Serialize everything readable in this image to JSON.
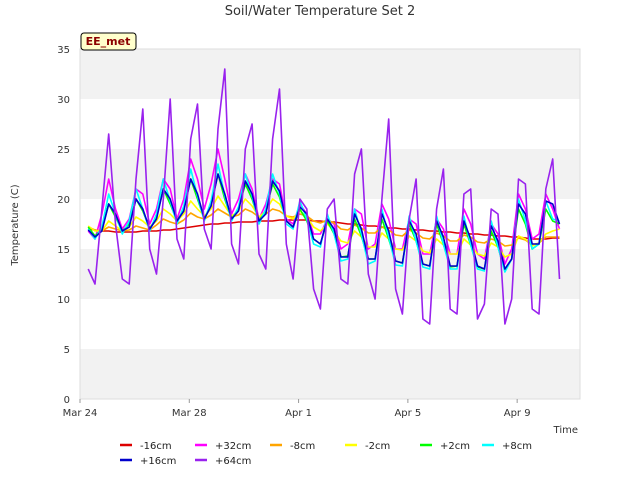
{
  "chart_data": {
    "type": "line",
    "title": "Soil/Water Temperature Set 2",
    "xlabel": "Time",
    "ylabel": "Temperature (C)",
    "badge": "EE_met",
    "ylim": [
      0,
      35
    ],
    "yticks": [
      0,
      5,
      10,
      15,
      20,
      25,
      30,
      35
    ],
    "xlim": [
      0,
      18.3
    ],
    "xticks": [
      {
        "value": 0,
        "label": "Mar 24"
      },
      {
        "value": 4,
        "label": "Mar 28"
      },
      {
        "value": 8,
        "label": "Apr 1"
      },
      {
        "value": 12,
        "label": "Apr 5"
      },
      {
        "value": 16,
        "label": "Apr 9"
      }
    ],
    "x_units": "days since Mar 24",
    "grid": "horizontal alternating bands",
    "legend_position": "bottom",
    "x": [
      0.3,
      0.55,
      0.8,
      1.05,
      1.3,
      1.55,
      1.8,
      2.05,
      2.3,
      2.55,
      2.8,
      3.05,
      3.3,
      3.55,
      3.8,
      4.05,
      4.3,
      4.55,
      4.8,
      5.05,
      5.3,
      5.55,
      5.8,
      6.05,
      6.3,
      6.55,
      6.8,
      7.05,
      7.3,
      7.55,
      7.8,
      8.05,
      8.3,
      8.55,
      8.8,
      9.05,
      9.3,
      9.55,
      9.8,
      10.05,
      10.3,
      10.55,
      10.8,
      11.05,
      11.3,
      11.55,
      11.8,
      12.05,
      12.3,
      12.55,
      12.8,
      13.05,
      13.3,
      13.55,
      13.8,
      14.05,
      14.3,
      14.55,
      14.8,
      15.05,
      15.3,
      15.55,
      15.8,
      16.05,
      16.3,
      16.55,
      16.8,
      17.05,
      17.3,
      17.55
    ],
    "series": [
      {
        "name": "-16cm",
        "color": "#dd0000",
        "values": [
          17.0,
          16.9,
          16.8,
          16.8,
          16.7,
          16.7,
          16.7,
          16.7,
          16.8,
          16.8,
          16.8,
          16.9,
          16.9,
          17.0,
          17.1,
          17.2,
          17.3,
          17.4,
          17.5,
          17.5,
          17.6,
          17.6,
          17.7,
          17.7,
          17.7,
          17.8,
          17.8,
          17.8,
          17.9,
          17.9,
          17.9,
          17.9,
          17.9,
          17.8,
          17.8,
          17.7,
          17.7,
          17.6,
          17.5,
          17.5,
          17.4,
          17.3,
          17.3,
          17.2,
          17.1,
          17.1,
          17.0,
          17.0,
          16.9,
          16.9,
          16.8,
          16.8,
          16.7,
          16.7,
          16.6,
          16.6,
          16.5,
          16.5,
          16.4,
          16.4,
          16.3,
          16.3,
          16.2,
          16.2,
          16.1,
          16.0,
          16.0,
          16.0,
          16.1,
          16.1
        ]
      },
      {
        "name": "+32cm",
        "color": "#ff00ff",
        "values": [
          16.8,
          16.0,
          18.5,
          22.0,
          19.0,
          17.0,
          18.0,
          21.0,
          20.5,
          17.5,
          19.0,
          22.0,
          21.0,
          18.0,
          20.0,
          24.0,
          22.0,
          19.0,
          21.5,
          25.0,
          22.0,
          18.5,
          20.0,
          22.5,
          21.0,
          18.0,
          19.5,
          22.0,
          21.5,
          18.0,
          17.5,
          19.5,
          18.5,
          16.5,
          16.5,
          18.0,
          17.5,
          15.0,
          15.5,
          19.0,
          18.5,
          15.0,
          15.5,
          19.5,
          18.0,
          15.0,
          15.0,
          18.0,
          17.5,
          14.5,
          14.5,
          18.0,
          17.0,
          14.5,
          14.5,
          19.0,
          17.5,
          14.5,
          14.0,
          17.5,
          16.5,
          13.5,
          15.0,
          20.5,
          19.0,
          16.0,
          16.5,
          20.5,
          19.0,
          17.0
        ]
      },
      {
        "name": "-8cm",
        "color": "#ffa500",
        "values": [
          17.2,
          16.9,
          16.8,
          17.2,
          17.0,
          16.8,
          16.9,
          17.3,
          17.1,
          16.9,
          17.4,
          18.0,
          17.7,
          17.5,
          17.9,
          18.6,
          18.2,
          18.0,
          18.4,
          19.0,
          18.6,
          18.2,
          18.4,
          19.0,
          18.7,
          18.2,
          18.5,
          19.0,
          18.8,
          18.3,
          18.2,
          18.5,
          18.3,
          17.8,
          17.6,
          17.9,
          17.6,
          17.0,
          16.9,
          17.4,
          17.1,
          16.6,
          16.6,
          17.2,
          16.9,
          16.4,
          16.3,
          16.9,
          16.6,
          16.1,
          16.0,
          16.6,
          16.3,
          15.8,
          15.8,
          16.4,
          16.2,
          15.7,
          15.6,
          16.0,
          15.8,
          15.3,
          15.4,
          16.1,
          15.9,
          15.4,
          15.6,
          16.2,
          16.2,
          16.2
        ]
      },
      {
        "name": "-2cm",
        "color": "#ffff00",
        "values": [
          17.3,
          16.8,
          16.8,
          17.8,
          17.3,
          16.8,
          17.2,
          18.2,
          17.8,
          17.2,
          17.8,
          19.0,
          18.5,
          17.8,
          18.5,
          19.8,
          19.0,
          18.3,
          19.0,
          20.3,
          19.3,
          18.3,
          18.8,
          20.0,
          19.3,
          18.2,
          18.8,
          20.0,
          19.5,
          18.3,
          18.0,
          18.8,
          18.2,
          17.2,
          16.8,
          17.5,
          16.8,
          15.8,
          15.6,
          16.8,
          16.2,
          15.2,
          15.2,
          16.6,
          16.0,
          15.0,
          14.9,
          16.3,
          15.8,
          14.8,
          14.6,
          16.0,
          15.4,
          14.5,
          14.5,
          16.0,
          15.4,
          14.5,
          14.3,
          15.6,
          15.2,
          14.2,
          14.5,
          16.3,
          16.0,
          15.3,
          15.6,
          16.5,
          16.8,
          17.0
        ]
      },
      {
        "name": "+2cm",
        "color": "#00ff00",
        "values": [
          17.2,
          16.3,
          17.0,
          19.5,
          18.2,
          16.8,
          17.5,
          20.0,
          18.8,
          17.0,
          18.2,
          21.0,
          19.5,
          17.8,
          19.0,
          22.0,
          20.0,
          18.0,
          19.5,
          22.5,
          20.0,
          18.0,
          19.0,
          21.5,
          20.0,
          17.8,
          18.8,
          21.5,
          20.2,
          17.8,
          17.2,
          19.0,
          17.8,
          16.0,
          15.5,
          17.8,
          16.5,
          14.2,
          14.3,
          18.0,
          16.3,
          14.0,
          14.0,
          18.0,
          16.0,
          13.8,
          13.6,
          17.5,
          15.8,
          13.5,
          13.3,
          17.5,
          15.5,
          13.2,
          13.3,
          17.5,
          15.4,
          13.2,
          13.0,
          16.8,
          15.2,
          12.8,
          14.0,
          19.0,
          17.5,
          15.0,
          15.5,
          19.0,
          17.8,
          17.5
        ]
      },
      {
        "name": "+8cm",
        "color": "#00ffff",
        "values": [
          17.0,
          16.0,
          17.2,
          20.5,
          18.5,
          16.5,
          17.8,
          21.0,
          19.0,
          16.8,
          18.5,
          22.0,
          19.8,
          17.5,
          19.3,
          23.0,
          20.3,
          17.8,
          19.8,
          23.5,
          20.3,
          17.8,
          19.2,
          22.5,
          20.3,
          17.5,
          19.0,
          22.5,
          20.5,
          17.5,
          17.0,
          19.8,
          18.0,
          15.5,
          15.2,
          18.5,
          16.5,
          13.8,
          14.0,
          19.0,
          16.5,
          13.5,
          13.8,
          19.0,
          16.2,
          13.4,
          13.3,
          18.3,
          15.8,
          13.2,
          13.0,
          18.3,
          15.5,
          13.0,
          13.0,
          18.3,
          15.4,
          13.0,
          12.8,
          17.8,
          15.2,
          12.7,
          14.0,
          20.0,
          17.8,
          15.0,
          15.5,
          19.8,
          18.0,
          17.8
        ]
      },
      {
        "name": "+16cm",
        "color": "#0000cc",
        "values": [
          16.9,
          16.2,
          16.8,
          19.5,
          18.5,
          16.8,
          17.2,
          20.0,
          19.0,
          17.0,
          18.0,
          21.0,
          20.0,
          17.8,
          18.8,
          22.0,
          20.5,
          18.0,
          19.3,
          22.5,
          20.5,
          18.0,
          18.8,
          21.8,
          20.5,
          17.8,
          18.5,
          21.8,
          20.8,
          17.8,
          17.2,
          19.2,
          18.5,
          16.0,
          15.5,
          18.0,
          17.0,
          14.2,
          14.2,
          18.5,
          17.0,
          14.0,
          14.0,
          18.5,
          16.8,
          13.8,
          13.6,
          17.8,
          16.5,
          13.5,
          13.3,
          17.8,
          16.2,
          13.3,
          13.3,
          17.8,
          16.0,
          13.3,
          13.0,
          17.3,
          15.8,
          13.0,
          14.0,
          19.5,
          18.5,
          15.5,
          15.5,
          19.8,
          19.5,
          17.5
        ]
      },
      {
        "name": "+64cm",
        "color": "#9922ee",
        "values": [
          13.0,
          11.5,
          19.0,
          26.5,
          17.5,
          12.0,
          11.5,
          22.0,
          29.0,
          15.0,
          12.5,
          20.0,
          30.0,
          16.0,
          14.0,
          26.0,
          29.5,
          17.0,
          15.0,
          27.0,
          33.0,
          15.5,
          13.5,
          25.0,
          27.5,
          14.5,
          13.0,
          26.0,
          31.0,
          15.5,
          12.0,
          20.0,
          19.0,
          11.0,
          9.0,
          19.0,
          20.0,
          12.0,
          11.5,
          22.5,
          25.0,
          12.5,
          10.0,
          20.0,
          28.0,
          11.0,
          8.5,
          18.0,
          22.0,
          8.0,
          7.5,
          19.0,
          23.0,
          9.0,
          8.5,
          20.5,
          21.0,
          8.0,
          9.5,
          19.0,
          18.5,
          7.5,
          10.0,
          22.0,
          21.5,
          9.0,
          8.5,
          21.0,
          24.0,
          12.0
        ]
      }
    ]
  }
}
